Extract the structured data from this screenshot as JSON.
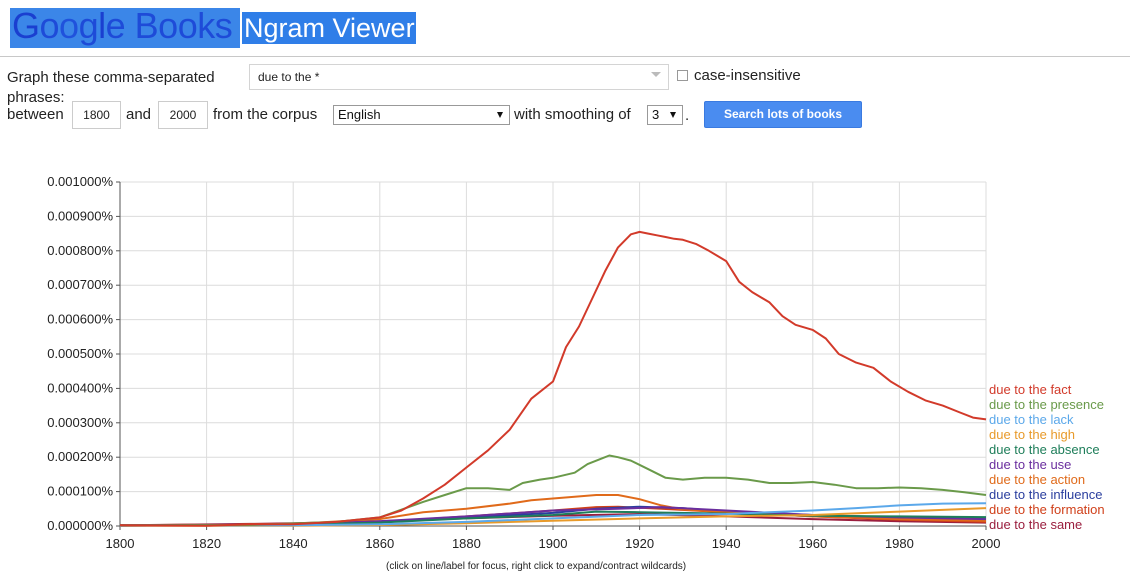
{
  "header": {
    "logo_letters": [
      {
        "ch": "G",
        "color": "#1a3fd0"
      },
      {
        "ch": "o",
        "color": "#1e4bd8"
      },
      {
        "ch": "o",
        "color": "#2052dc"
      },
      {
        "ch": "g",
        "color": "#1e4bd8"
      },
      {
        "ch": "l",
        "color": "#1a3fd0"
      },
      {
        "ch": "e",
        "color": "#1e4bd8"
      },
      {
        "ch": " ",
        "color": "#1e4bd8"
      },
      {
        "ch": "B",
        "color": "#1e4bd8"
      },
      {
        "ch": "o",
        "color": "#1e4bd8"
      },
      {
        "ch": "o",
        "color": "#1e4bd8"
      },
      {
        "ch": "k",
        "color": "#1e4bd8"
      },
      {
        "ch": "s",
        "color": "#1e4bd8"
      }
    ],
    "title": "Ngram Viewer"
  },
  "form": {
    "graph_label": "Graph these comma-separated",
    "phrases_label": "phrases:",
    "phrase_value": "due to the *",
    "case_label": "case-insensitive",
    "between_label": "between",
    "start_year": "1800",
    "and_label": "and",
    "end_year": "2000",
    "corpus_label": "from the corpus",
    "corpus_value": "English",
    "smoothing_label": "with smoothing of",
    "smoothing_value": "3",
    "period": ".",
    "search_button": "Search lots of books"
  },
  "hint": "(click on line/label for focus, right click to expand/contract wildcards)",
  "chart_data": {
    "type": "line",
    "xlim": [
      1800,
      2000
    ],
    "ylim": [
      0,
      0.001
    ],
    "x_ticks": [
      1800,
      1820,
      1840,
      1860,
      1880,
      1900,
      1920,
      1940,
      1960,
      1980,
      2000
    ],
    "y_ticks": [
      0,
      0.0001,
      0.0002,
      0.0003,
      0.0004,
      0.0005,
      0.0006,
      0.0007,
      0.0008,
      0.0009,
      0.001
    ],
    "y_tick_labels": [
      "0.000000%",
      "0.000100%",
      "0.000200%",
      "0.000300%",
      "0.000400%",
      "0.000500%",
      "0.000600%",
      "0.000700%",
      "0.000800%",
      "0.000900%",
      "0.001000%"
    ],
    "x_tick_labels": [
      "1800",
      "1820",
      "1840",
      "1860",
      "1880",
      "1900",
      "1920",
      "1940",
      "1960",
      "1980",
      "2000"
    ],
    "grid": true,
    "legend_position": "right",
    "series": [
      {
        "name": "due to the fact",
        "color": "#d23a2a",
        "points": [
          [
            1800,
            2e-06
          ],
          [
            1820,
            1e-06
          ],
          [
            1830,
            5e-06
          ],
          [
            1840,
            5e-06
          ],
          [
            1850,
            1.2e-05
          ],
          [
            1860,
            2.5e-05
          ],
          [
            1865,
            4.5e-05
          ],
          [
            1870,
            8e-05
          ],
          [
            1875,
            0.00012
          ],
          [
            1880,
            0.00017
          ],
          [
            1885,
            0.00022
          ],
          [
            1890,
            0.00028
          ],
          [
            1895,
            0.00037
          ],
          [
            1900,
            0.00042
          ],
          [
            1903,
            0.00052
          ],
          [
            1906,
            0.00058
          ],
          [
            1909,
            0.00066
          ],
          [
            1912,
            0.00074
          ],
          [
            1915,
            0.00081
          ],
          [
            1918,
            0.000848
          ],
          [
            1920,
            0.000855
          ],
          [
            1922,
            0.00085
          ],
          [
            1924,
            0.000845
          ],
          [
            1926,
            0.00084
          ],
          [
            1928,
            0.000835
          ],
          [
            1930,
            0.000832
          ],
          [
            1933,
            0.00082
          ],
          [
            1936,
            0.0008
          ],
          [
            1940,
            0.00077
          ],
          [
            1943,
            0.00071
          ],
          [
            1946,
            0.00068
          ],
          [
            1950,
            0.00065
          ],
          [
            1953,
            0.00061
          ],
          [
            1956,
            0.000585
          ],
          [
            1960,
            0.00057
          ],
          [
            1963,
            0.000545
          ],
          [
            1966,
            0.0005
          ],
          [
            1970,
            0.000475
          ],
          [
            1974,
            0.00046
          ],
          [
            1978,
            0.00042
          ],
          [
            1982,
            0.00039
          ],
          [
            1986,
            0.000365
          ],
          [
            1990,
            0.00035
          ],
          [
            1994,
            0.00033
          ],
          [
            1997,
            0.000315
          ],
          [
            2000,
            0.00031
          ]
        ]
      },
      {
        "name": "due to the presence",
        "color": "#6a9a4a",
        "points": [
          [
            1800,
            2e-06
          ],
          [
            1830,
            3e-06
          ],
          [
            1850,
            1.2e-05
          ],
          [
            1860,
            2.5e-05
          ],
          [
            1870,
            7e-05
          ],
          [
            1875,
            9e-05
          ],
          [
            1880,
            0.00011
          ],
          [
            1885,
            0.00011
          ],
          [
            1890,
            0.000105
          ],
          [
            1893,
            0.000125
          ],
          [
            1897,
            0.000135
          ],
          [
            1900,
            0.00014
          ],
          [
            1905,
            0.000155
          ],
          [
            1908,
            0.00018
          ],
          [
            1911,
            0.000195
          ],
          [
            1913,
            0.000205
          ],
          [
            1915,
            0.0002
          ],
          [
            1918,
            0.00019
          ],
          [
            1922,
            0.000165
          ],
          [
            1926,
            0.00014
          ],
          [
            1930,
            0.000135
          ],
          [
            1935,
            0.00014
          ],
          [
            1940,
            0.00014
          ],
          [
            1945,
            0.000135
          ],
          [
            1950,
            0.000125
          ],
          [
            1955,
            0.000125
          ],
          [
            1960,
            0.000128
          ],
          [
            1965,
            0.00012
          ],
          [
            1970,
            0.00011
          ],
          [
            1975,
            0.00011
          ],
          [
            1980,
            0.000112
          ],
          [
            1985,
            0.00011
          ],
          [
            1990,
            0.000105
          ],
          [
            1995,
            9.8e-05
          ],
          [
            2000,
            9e-05
          ]
        ]
      },
      {
        "name": "due to the lack",
        "color": "#5ba8ea",
        "points": [
          [
            1800,
            1e-06
          ],
          [
            1840,
            2e-06
          ],
          [
            1860,
            5e-06
          ],
          [
            1880,
            1.2e-05
          ],
          [
            1900,
            2.2e-05
          ],
          [
            1920,
            3.2e-05
          ],
          [
            1940,
            3.5e-05
          ],
          [
            1960,
            4.5e-05
          ],
          [
            1970,
            5.2e-05
          ],
          [
            1980,
            6e-05
          ],
          [
            1990,
            6.5e-05
          ],
          [
            2000,
            6.6e-05
          ]
        ]
      },
      {
        "name": "due to the high",
        "color": "#e89a2a",
        "points": [
          [
            1800,
            1e-06
          ],
          [
            1840,
            1e-06
          ],
          [
            1860,
            3e-06
          ],
          [
            1880,
            8e-06
          ],
          [
            1900,
            1.5e-05
          ],
          [
            1920,
            2.2e-05
          ],
          [
            1940,
            2.8e-05
          ],
          [
            1960,
            3.2e-05
          ],
          [
            1980,
            4.2e-05
          ],
          [
            2000,
            5.2e-05
          ]
        ]
      },
      {
        "name": "due to the absence",
        "color": "#1e7e5a",
        "points": [
          [
            1800,
            1e-06
          ],
          [
            1840,
            4e-06
          ],
          [
            1860,
            1e-05
          ],
          [
            1880,
            2.2e-05
          ],
          [
            1900,
            3.2e-05
          ],
          [
            1910,
            4.2e-05
          ],
          [
            1920,
            4e-05
          ],
          [
            1940,
            3.6e-05
          ],
          [
            1960,
            3e-05
          ],
          [
            1980,
            2.8e-05
          ],
          [
            2000,
            2.6e-05
          ]
        ]
      },
      {
        "name": "due to the use",
        "color": "#6a2e9e",
        "points": [
          [
            1800,
            2e-06
          ],
          [
            1840,
            5e-06
          ],
          [
            1860,
            1.4e-05
          ],
          [
            1880,
            2.8e-05
          ],
          [
            1900,
            4.5e-05
          ],
          [
            1915,
            5e-05
          ],
          [
            1925,
            5.5e-05
          ],
          [
            1940,
            4.5e-05
          ],
          [
            1960,
            3.2e-05
          ],
          [
            1980,
            2.5e-05
          ],
          [
            2000,
            2e-05
          ]
        ]
      },
      {
        "name": "due to the action",
        "color": "#e06a1a",
        "points": [
          [
            1800,
            2e-06
          ],
          [
            1840,
            6e-06
          ],
          [
            1860,
            2e-05
          ],
          [
            1870,
            4e-05
          ],
          [
            1880,
            5e-05
          ],
          [
            1890,
            6.5e-05
          ],
          [
            1895,
            7.5e-05
          ],
          [
            1900,
            8e-05
          ],
          [
            1905,
            8.5e-05
          ],
          [
            1910,
            9e-05
          ],
          [
            1915,
            9e-05
          ],
          [
            1920,
            7.8e-05
          ],
          [
            1925,
            6e-05
          ],
          [
            1930,
            4.8e-05
          ],
          [
            1940,
            4e-05
          ],
          [
            1950,
            3.4e-05
          ],
          [
            1960,
            2.8e-05
          ],
          [
            1980,
            2e-05
          ],
          [
            2000,
            1.5e-05
          ]
        ]
      },
      {
        "name": "due to the influence",
        "color": "#2a3e9e",
        "points": [
          [
            1800,
            2e-06
          ],
          [
            1840,
            4e-06
          ],
          [
            1860,
            1.2e-05
          ],
          [
            1880,
            2.5e-05
          ],
          [
            1900,
            3.8e-05
          ],
          [
            1910,
            5e-05
          ],
          [
            1920,
            5.6e-05
          ],
          [
            1930,
            5.2e-05
          ],
          [
            1940,
            4.2e-05
          ],
          [
            1960,
            3.2e-05
          ],
          [
            1980,
            2.4e-05
          ],
          [
            2000,
            2e-05
          ]
        ]
      },
      {
        "name": "due to the formation",
        "color": "#d0401a",
        "points": [
          [
            1800,
            1e-06
          ],
          [
            1840,
            4e-06
          ],
          [
            1860,
            1.2e-05
          ],
          [
            1880,
            2.8e-05
          ],
          [
            1900,
            4.5e-05
          ],
          [
            1910,
            5.5e-05
          ],
          [
            1915,
            5.6e-05
          ],
          [
            1925,
            5e-05
          ],
          [
            1940,
            4e-05
          ],
          [
            1960,
            2.8e-05
          ],
          [
            1980,
            1.8e-05
          ],
          [
            2000,
            1.2e-05
          ]
        ]
      },
      {
        "name": "due to the same",
        "color": "#9a1e3e",
        "points": [
          [
            1800,
            2e-06
          ],
          [
            1830,
            6e-06
          ],
          [
            1840,
            8e-06
          ],
          [
            1860,
            1.4e-05
          ],
          [
            1880,
            2.2e-05
          ],
          [
            1900,
            3e-05
          ],
          [
            1920,
            3.5e-05
          ],
          [
            1940,
            2.8e-05
          ],
          [
            1960,
            2e-05
          ],
          [
            1980,
            1.4e-05
          ],
          [
            2000,
            1e-05
          ]
        ]
      }
    ]
  }
}
